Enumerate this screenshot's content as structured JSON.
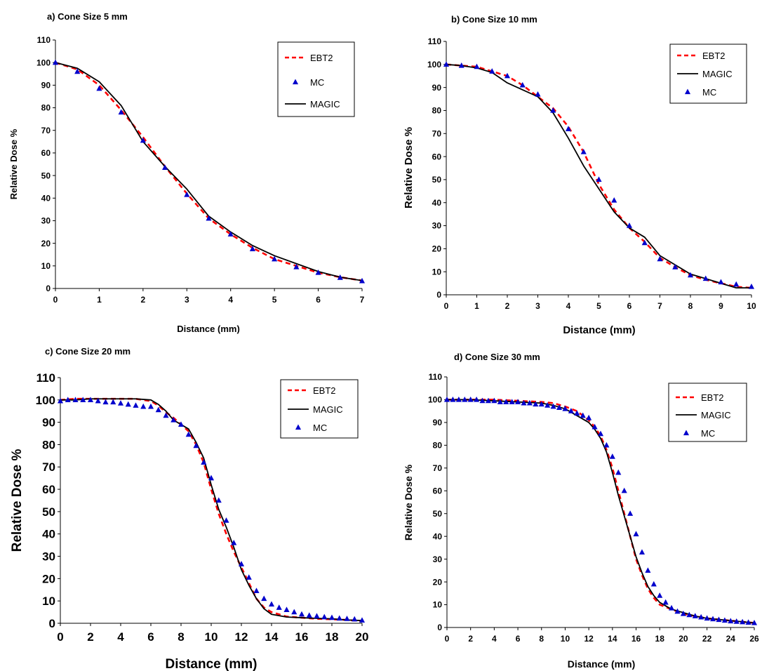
{
  "figure": {
    "colors": {
      "ebt2": "#ff0000",
      "magic": "#000000",
      "mc": "#0000cc",
      "axis": "#000000",
      "background": "#ffffff"
    }
  },
  "chart_data": [
    {
      "type": "line",
      "title": "a) Cone Size 5 mm",
      "xlabel": "Distance (mm)",
      "ylabel": "Relative Dose %",
      "xlim": [
        0,
        7
      ],
      "ylim": [
        0,
        110
      ],
      "xticks": [
        0,
        1,
        2,
        3,
        4,
        5,
        6,
        7
      ],
      "yticks": [
        0,
        10,
        20,
        30,
        40,
        50,
        60,
        70,
        80,
        90,
        100,
        110
      ],
      "grid": false,
      "legend": {
        "position": "top-right",
        "order": [
          "EBT2",
          "MC",
          "MAGIC"
        ]
      },
      "series": [
        {
          "name": "EBT2",
          "style": "dashed",
          "color": "#ff0000",
          "x": [
            0,
            0.5,
            1,
            1.5,
            2,
            2.5,
            3,
            3.5,
            4,
            4.5,
            5,
            5.5,
            6,
            6.5,
            7
          ],
          "y": [
            100,
            97,
            90,
            79,
            67,
            54,
            42,
            31,
            24,
            18,
            13,
            10,
            7,
            5,
            3.5
          ]
        },
        {
          "name": "MC",
          "style": "triangle",
          "color": "#0000cc",
          "x": [
            0,
            0.5,
            1,
            1.5,
            2,
            2.5,
            3,
            3.5,
            4,
            4.5,
            5,
            5.5,
            6,
            6.5,
            7
          ],
          "y": [
            100,
            96,
            88.5,
            78,
            65.5,
            53.5,
            41.5,
            31,
            24,
            17.5,
            13,
            9.5,
            7,
            4.8,
            3.3
          ]
        },
        {
          "name": "MAGIC",
          "style": "solid",
          "color": "#000000",
          "x": [
            0,
            0.5,
            1,
            1.5,
            2,
            2.5,
            3,
            3.5,
            4,
            4.5,
            5,
            5.5,
            6,
            6.5,
            7
          ],
          "y": [
            100,
            97.5,
            91.5,
            81,
            65,
            54,
            44,
            32,
            25,
            19,
            14.5,
            11,
            7.5,
            5,
            3.5
          ]
        }
      ]
    },
    {
      "type": "line",
      "title": "b) Cone Size 10 mm",
      "xlabel": "Distance (mm)",
      "ylabel": "Relative Dose %",
      "xlim": [
        0,
        10
      ],
      "ylim": [
        0,
        110
      ],
      "xticks": [
        0,
        1,
        2,
        3,
        4,
        5,
        6,
        7,
        8,
        9,
        10
      ],
      "yticks": [
        0,
        10,
        20,
        30,
        40,
        50,
        60,
        70,
        80,
        90,
        100,
        110
      ],
      "grid": false,
      "legend": {
        "position": "top-right",
        "order": [
          "EBT2",
          "MAGIC",
          "MC"
        ]
      },
      "series": [
        {
          "name": "EBT2",
          "style": "dashed",
          "color": "#ff0000",
          "x": [
            0,
            0.5,
            1,
            1.5,
            2,
            2.5,
            3,
            3.5,
            4,
            4.5,
            5,
            5.5,
            6,
            6.5,
            7,
            7.5,
            8,
            8.5,
            9,
            9.5,
            10
          ],
          "y": [
            100,
            99.5,
            99,
            97,
            95,
            91,
            86,
            81,
            73,
            62,
            48,
            37,
            29,
            23,
            16,
            12,
            8.5,
            6.5,
            5,
            3.5,
            3
          ]
        },
        {
          "name": "MAGIC",
          "style": "solid",
          "color": "#000000",
          "x": [
            0,
            0.5,
            1,
            1.5,
            2,
            2.5,
            3,
            3.5,
            4,
            4.5,
            5,
            5.5,
            6,
            6.5,
            7,
            7.5,
            8,
            8.5,
            9,
            9.5,
            10
          ],
          "y": [
            100,
            99.5,
            98.5,
            96.5,
            92,
            89,
            86,
            79,
            68,
            56,
            46,
            36,
            29,
            25,
            17,
            13,
            9,
            7,
            5,
            3,
            3
          ]
        },
        {
          "name": "MC",
          "style": "triangle",
          "color": "#0000cc",
          "x": [
            0,
            0.5,
            1,
            1.5,
            2,
            2.5,
            3,
            3.5,
            4,
            4.5,
            5,
            5.5,
            6,
            6.5,
            7,
            7.5,
            8,
            8.5,
            9,
            9.5,
            10
          ],
          "y": [
            100,
            99.5,
            99,
            97,
            95,
            91,
            87,
            80,
            72,
            62,
            50,
            41,
            30,
            22.5,
            15.5,
            12,
            8.5,
            7,
            5.5,
            4.5,
            3.5
          ]
        }
      ]
    },
    {
      "type": "line",
      "title": "c) Cone Size 20 mm",
      "xlabel": "Distance (mm)",
      "ylabel": "Relative Dose %",
      "xlim": [
        0,
        20
      ],
      "ylim": [
        0,
        110
      ],
      "xticks": [
        0,
        2,
        4,
        6,
        8,
        10,
        12,
        14,
        16,
        18,
        20
      ],
      "yticks": [
        0,
        10,
        20,
        30,
        40,
        50,
        60,
        70,
        80,
        90,
        100,
        110
      ],
      "grid": false,
      "legend": {
        "position": "top-right",
        "order": [
          "EBT2",
          "MAGIC",
          "MC"
        ]
      },
      "series": [
        {
          "name": "EBT2",
          "style": "dashed",
          "color": "#ff0000",
          "x": [
            0,
            1,
            2,
            3,
            4,
            5,
            6,
            6.5,
            7,
            7.5,
            8,
            8.5,
            9,
            9.5,
            10,
            10.5,
            11,
            11.5,
            12,
            12.5,
            13,
            13.5,
            14,
            15,
            16,
            17,
            18,
            19,
            20
          ],
          "y": [
            100,
            100.5,
            100.5,
            100.5,
            100.5,
            100.5,
            99.5,
            97.5,
            94.5,
            92,
            89,
            86,
            80,
            72,
            60,
            49,
            40,
            32,
            25,
            18,
            11,
            7,
            5,
            3,
            2.5,
            2,
            1.8,
            1.5,
            1
          ]
        },
        {
          "name": "MAGIC",
          "style": "solid",
          "color": "#000000",
          "x": [
            0,
            1,
            2,
            3,
            4,
            5,
            6,
            6.5,
            7,
            7.5,
            8,
            8.5,
            9,
            9.5,
            10,
            10.5,
            11,
            11.5,
            12,
            12.5,
            13,
            13.5,
            14,
            15,
            16,
            17,
            18,
            19,
            20
          ],
          "y": [
            100,
            100,
            100.5,
            100.5,
            100.5,
            100.5,
            100,
            98,
            95,
            91,
            89,
            87,
            81,
            74,
            62,
            51,
            43,
            34,
            24,
            17,
            11,
            6.5,
            4,
            2.8,
            2.5,
            2.2,
            2,
            1.5,
            1.2
          ]
        },
        {
          "name": "MC",
          "style": "triangle",
          "color": "#0000cc",
          "x": [
            0,
            0.5,
            1,
            1.5,
            2,
            2.5,
            3,
            3.5,
            4,
            4.5,
            5,
            5.5,
            6,
            6.5,
            7,
            7.5,
            8,
            8.5,
            9,
            9.5,
            10,
            10.5,
            11,
            11.5,
            12,
            12.5,
            13,
            13.5,
            14,
            14.5,
            15,
            15.5,
            16,
            16.5,
            17,
            17.5,
            18,
            18.5,
            19,
            19.5,
            20
          ],
          "y": [
            99.5,
            100,
            100,
            100,
            100,
            99.5,
            99,
            99,
            98.5,
            98,
            97.5,
            97,
            97,
            95.5,
            93,
            91,
            89,
            84.5,
            79.5,
            72,
            65,
            55,
            46,
            36,
            26.5,
            20.5,
            14.5,
            11,
            8.5,
            7,
            6,
            5,
            4,
            3.5,
            3.2,
            2.8,
            2.5,
            2.2,
            2,
            1.8,
            1.3
          ]
        }
      ]
    },
    {
      "type": "line",
      "title": "d) Cone Size 30 mm",
      "xlabel": "Distance (mm)",
      "ylabel": "Relative Dose %",
      "xlim": [
        0,
        26
      ],
      "ylim": [
        0,
        110
      ],
      "xticks": [
        0,
        2,
        4,
        6,
        8,
        10,
        12,
        14,
        16,
        18,
        20,
        22,
        24,
        26
      ],
      "yticks": [
        0,
        10,
        20,
        30,
        40,
        50,
        60,
        70,
        80,
        90,
        100,
        110
      ],
      "grid": false,
      "legend": {
        "position": "top-right",
        "order": [
          "EBT2",
          "MAGIC",
          "MC"
        ]
      },
      "series": [
        {
          "name": "EBT2",
          "style": "dashed",
          "color": "#ff0000",
          "x": [
            0,
            2,
            4,
            6,
            8,
            9,
            10,
            11,
            12,
            12.5,
            13,
            13.5,
            14,
            14.5,
            15,
            15.5,
            16,
            16.5,
            17,
            17.5,
            18,
            19,
            20,
            21,
            22,
            23,
            24,
            25,
            26
          ],
          "y": [
            100,
            100,
            100,
            99.5,
            99,
            98.5,
            97,
            95,
            91,
            88,
            84,
            78,
            70,
            60,
            50,
            40,
            30,
            23,
            17,
            13,
            10,
            8,
            6,
            5,
            4,
            3.5,
            3,
            2.5,
            2
          ]
        },
        {
          "name": "MAGIC",
          "style": "solid",
          "color": "#000000",
          "x": [
            0,
            2,
            4,
            6,
            8,
            9,
            10,
            11,
            12,
            12.5,
            13,
            13.5,
            14,
            14.5,
            15,
            15.5,
            16,
            16.5,
            17,
            17.5,
            18,
            19,
            20,
            21,
            22,
            23,
            24,
            25,
            26
          ],
          "y": [
            100,
            100,
            99.5,
            99,
            98.5,
            97.5,
            96,
            93,
            90,
            87,
            83,
            77,
            68,
            58,
            49,
            40,
            31,
            24,
            18,
            14,
            11,
            8,
            6.5,
            5,
            4,
            3.5,
            3,
            2.5,
            2
          ]
        },
        {
          "name": "MC",
          "style": "triangle",
          "color": "#0000cc",
          "x": [
            0,
            0.5,
            1,
            1.5,
            2,
            2.5,
            3,
            3.5,
            4,
            4.5,
            5,
            5.5,
            6,
            6.5,
            7,
            7.5,
            8,
            8.5,
            9,
            9.5,
            10,
            10.5,
            11,
            11.5,
            12,
            12.5,
            13,
            13.5,
            14,
            14.5,
            15,
            15.5,
            16,
            16.5,
            17,
            17.5,
            18,
            18.5,
            19,
            19.5,
            20,
            20.5,
            21,
            21.5,
            22,
            22.5,
            23,
            23.5,
            24,
            24.5,
            25,
            25.5,
            26
          ],
          "y": [
            100,
            100,
            100,
            100,
            100,
            100,
            99.5,
            99.5,
            99.5,
            99,
            99,
            99,
            99,
            98.5,
            98.5,
            98,
            98,
            97.5,
            97,
            96.5,
            96,
            95,
            94,
            93,
            92,
            88,
            85,
            80,
            75,
            68,
            60,
            50,
            41,
            33,
            25,
            19,
            14,
            11,
            8.5,
            7,
            6,
            5.5,
            5,
            4.5,
            4,
            3.7,
            3.4,
            3.1,
            2.8,
            2.6,
            2.4,
            2.2,
            2
          ]
        }
      ]
    }
  ]
}
